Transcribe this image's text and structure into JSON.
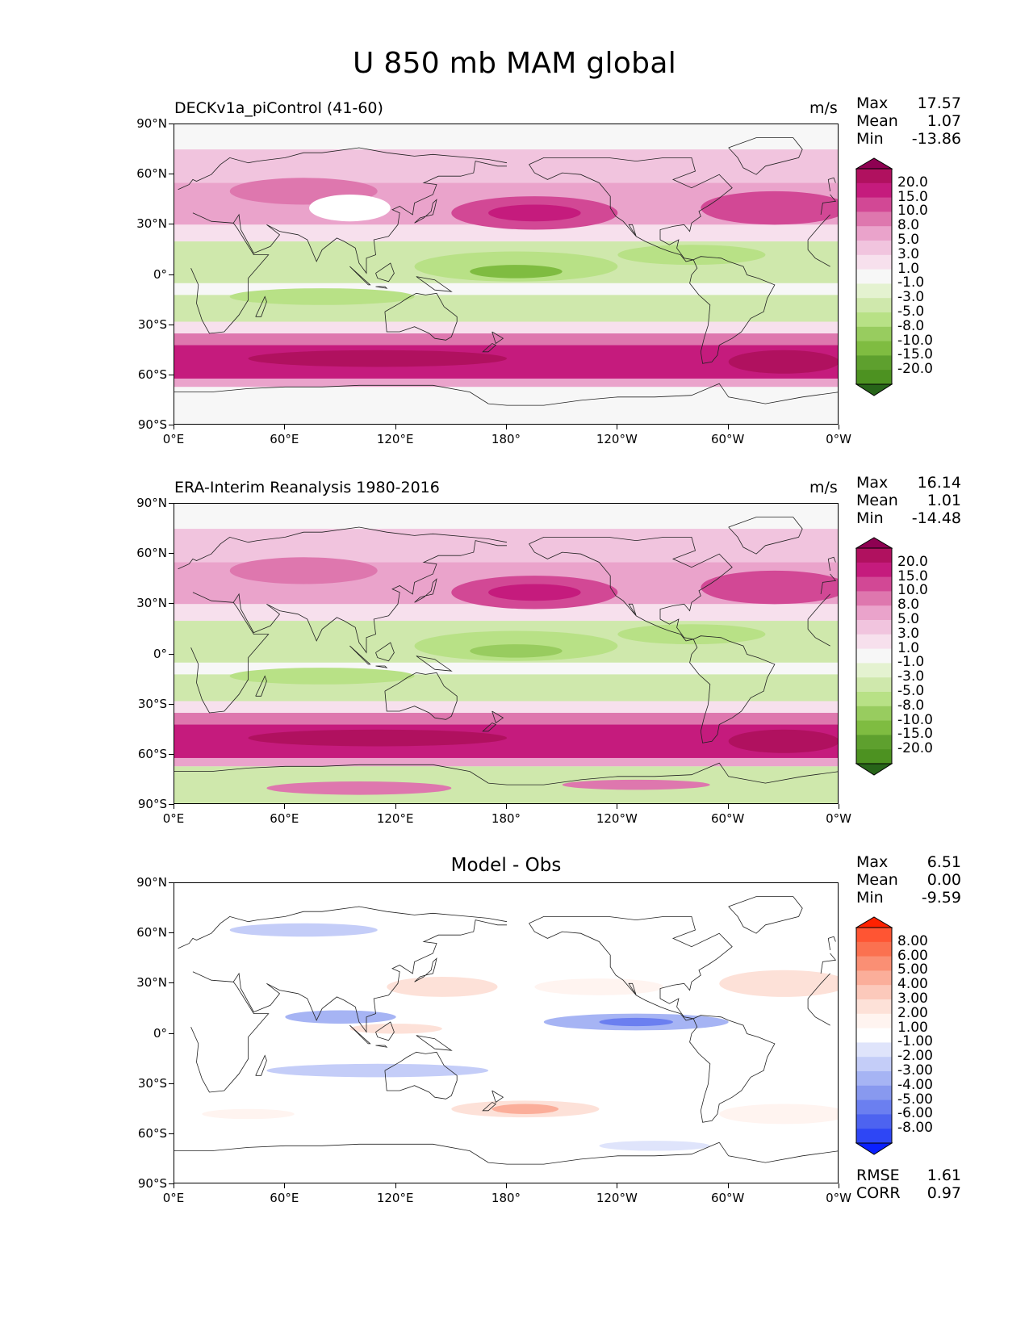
{
  "title": "U 850 mb MAM global",
  "axes": {
    "yticks": [
      "90°N",
      "60°N",
      "30°N",
      "0°",
      "30°S",
      "60°S",
      "90°S"
    ],
    "xticks": [
      "0°E",
      "60°E",
      "120°E",
      "180°",
      "120°W",
      "60°W",
      "0°W"
    ]
  },
  "colorbars": {
    "wind": {
      "labels": [
        "20.0",
        "15.0",
        "10.0",
        "8.0",
        "5.0",
        "3.0",
        "1.0",
        "-1.0",
        "-3.0",
        "-5.0",
        "-8.0",
        "-10.0",
        "-15.0",
        "-20.0"
      ],
      "colors": [
        "#8e0152",
        "#b0115f",
        "#c51b7d",
        "#d24895",
        "#de77ae",
        "#eaa3cb",
        "#f1c4de",
        "#f7e0ed",
        "#f7f7f7",
        "#e4f2d0",
        "#cfe8ac",
        "#b8e186",
        "#98cc5f",
        "#7fbc41",
        "#5ea02e",
        "#4d9221",
        "#276419"
      ]
    },
    "diff": {
      "labels": [
        "8.00",
        "6.00",
        "5.00",
        "4.00",
        "3.00",
        "2.00",
        "1.00",
        "-1.00",
        "-2.00",
        "-3.00",
        "-4.00",
        "-5.00",
        "-6.00",
        "-8.00"
      ],
      "colors": [
        "#ff2200",
        "#ff5533",
        "#fb7150",
        "#fa8f74",
        "#fbae9a",
        "#fcc9bb",
        "#fde1d8",
        "#fff4f0",
        "#ffffff",
        "#dfe4fb",
        "#c4cdf8",
        "#a6b4f4",
        "#8899ef",
        "#6b7ff0",
        "#4d63f0",
        "#2e46f5",
        "#0a20ff"
      ]
    }
  },
  "panels": [
    {
      "title": "DECKv1a_piControl (41-60)",
      "units": "m/s",
      "stats": {
        "max_label": "Max",
        "max": "17.57",
        "mean_label": "Mean",
        "mean": "1.07",
        "min_label": "Min",
        "min": "-13.86"
      }
    },
    {
      "title": "ERA-Interim Reanalysis 1980-2016",
      "units": "m/s",
      "stats": {
        "max_label": "Max",
        "max": "16.14",
        "mean_label": "Mean",
        "mean": "1.01",
        "min_label": "Min",
        "min": "-14.48"
      }
    },
    {
      "title": "Model - Obs",
      "units": "",
      "stats": {
        "max_label": "Max",
        "max": "6.51",
        "mean_label": "Mean",
        "mean": "0.00",
        "min_label": "Min",
        "min": "-9.59"
      },
      "metrics": {
        "rmse_label": "RMSE",
        "rmse": "1.61",
        "corr_label": "CORR",
        "corr": "0.97"
      }
    }
  ],
  "chart_data": [
    {
      "type": "heatmap",
      "title": "DECKv1a_piControl (41-60)",
      "field": "zonal wind U at 850 mb, MAM",
      "units": "m/s",
      "lon_range": [
        0,
        360
      ],
      "lat_range": [
        -90,
        90
      ],
      "contour_levels": [
        -20,
        -15,
        -10,
        -8,
        -5,
        -3,
        -1,
        1,
        3,
        5,
        8,
        10,
        15,
        20
      ],
      "max": 17.57,
      "mean": 1.07,
      "min": -13.86
    },
    {
      "type": "heatmap",
      "title": "ERA-Interim Reanalysis 1980-2016",
      "field": "zonal wind U at 850 mb, MAM",
      "units": "m/s",
      "lon_range": [
        0,
        360
      ],
      "lat_range": [
        -90,
        90
      ],
      "contour_levels": [
        -20,
        -15,
        -10,
        -8,
        -5,
        -3,
        -1,
        1,
        3,
        5,
        8,
        10,
        15,
        20
      ],
      "max": 16.14,
      "mean": 1.01,
      "min": -14.48
    },
    {
      "type": "heatmap",
      "title": "Model - Obs",
      "field": "difference",
      "lon_range": [
        0,
        360
      ],
      "lat_range": [
        -90,
        90
      ],
      "contour_levels": [
        -8,
        -6,
        -5,
        -4,
        -3,
        -2,
        -1,
        1,
        2,
        3,
        4,
        5,
        6,
        8
      ],
      "max": 6.51,
      "mean": 0.0,
      "min": -9.59,
      "rmse": 1.61,
      "corr": 0.97
    }
  ]
}
